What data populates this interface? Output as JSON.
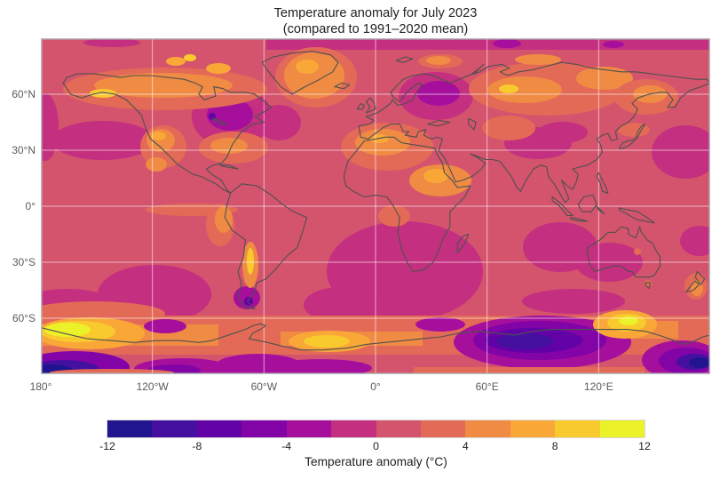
{
  "title": {
    "line1": "Temperature anomaly for July 2023",
    "line2": "(compared to 1991–2020 mean)"
  },
  "chart_data": {
    "type": "heatmap",
    "title": "Temperature anomaly for July 2023",
    "subtitle": "(compared to 1991–2020 mean)",
    "projection": "equirectangular world map with coastlines",
    "grid": true,
    "x_axis": {
      "range": [
        -180,
        180
      ],
      "ticks": [
        {
          "value": -180,
          "label": "180°"
        },
        {
          "value": -120,
          "label": "120°W"
        },
        {
          "value": -60,
          "label": "60°W"
        },
        {
          "value": 0,
          "label": "0°"
        },
        {
          "value": 60,
          "label": "60°E"
        },
        {
          "value": 120,
          "label": "120°E"
        }
      ]
    },
    "y_axis": {
      "range": [
        -90,
        90
      ],
      "ticks": [
        {
          "value": 60,
          "label": "60°N"
        },
        {
          "value": 30,
          "label": "30°N"
        },
        {
          "value": 0,
          "label": "0°"
        },
        {
          "value": -30,
          "label": "30°S"
        },
        {
          "value": -60,
          "label": "60°S"
        }
      ]
    },
    "colorbar": {
      "label": "Temperature anomaly (°C)",
      "min": -12,
      "max": 12,
      "segment_step": 2,
      "tick_values": [
        -12,
        -8,
        -4,
        0,
        4,
        8,
        12
      ],
      "tick_labels": [
        "-12",
        "-8",
        "-4",
        "0",
        "4",
        "8",
        "12"
      ],
      "colors": [
        "#21148f",
        "#45109f",
        "#6202a6",
        "#8204a7",
        "#a50f9c",
        "#c42f80",
        "#d4536d",
        "#e36a57",
        "#f08b44",
        "#f9a838",
        "#f9ca2d",
        "#ecf229"
      ]
    },
    "features": [
      "Background over most of the globe is 0 to +2 °C (rose)",
      "Strong warm anomalies +6 to +12 °C along the Southern Ocean near 60°S (south Pacific sector, south Atlantic sector and near the Ross Sea)",
      "Strong cold anomalies −6 to −12 °C over interior East Antarctica, West Antarctica and the far south-east corner",
      "Warm anomalies +2 to +6 °C over Arctic Canada, Greenland, Siberia, the Mediterranean/North Africa, Sudan–Arabia, south-western North America/Mexico and the equatorial eastern Pacific (El Niño band)",
      "Narrow warm stripe +4 to +8 °C over Argentina near 35°S",
      "Cool anomalies −2 to −4 °C over central Canada, Scandinavia/NW Russia, Tibet/NW India, the subtropical North & South Pacific, South Atlantic, southern Indian Ocean and western Australia"
    ]
  },
  "colors": {
    "background": "#ffffff",
    "coastline": "#4d524f",
    "gridline": "rgba(255,255,255,0.6)",
    "axis_text": "#5a5a5a",
    "title_text": "#212121",
    "map_border": "#b7bbbe",
    "base_anomaly_color": "#d4536d"
  }
}
